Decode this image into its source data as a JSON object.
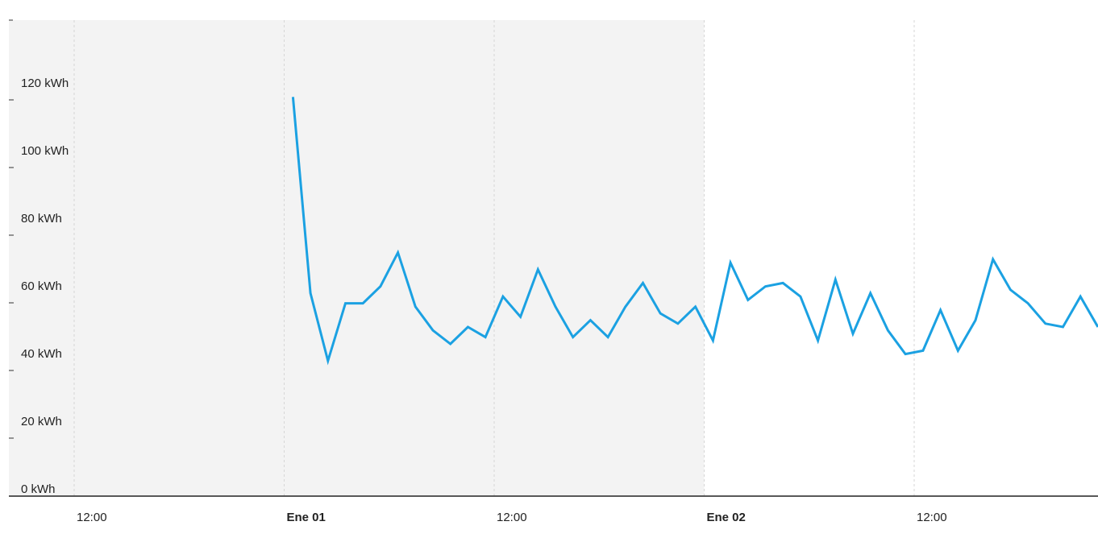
{
  "chart_data": {
    "type": "line",
    "title": "",
    "xlabel": "",
    "ylabel": "",
    "grid": "vertical",
    "shaded_range": [
      "Dic 31 00:00",
      "Ene 02 00:00"
    ],
    "xlim_hours": [
      -36,
      60
    ],
    "ylim": [
      0,
      140
    ],
    "y_ticks": [
      {
        "value": 0,
        "label": "0 kWh"
      },
      {
        "value": 20,
        "label": "20 kWh"
      },
      {
        "value": 40,
        "label": "40 kWh"
      },
      {
        "value": 60,
        "label": "60 kWh"
      },
      {
        "value": 80,
        "label": "80 kWh"
      },
      {
        "value": 100,
        "label": "100 kWh"
      },
      {
        "value": 120,
        "label": "120 kWh"
      }
    ],
    "x_ticks": [
      {
        "hour": -12,
        "label": "12:00",
        "bold": false
      },
      {
        "hour": 0,
        "label": "Ene 01",
        "bold": true
      },
      {
        "hour": 12,
        "label": "12:00",
        "bold": false
      },
      {
        "hour": 24,
        "label": "Ene 02",
        "bold": true
      },
      {
        "hour": 36,
        "label": "12:00",
        "bold": false
      }
    ],
    "series": [
      {
        "color": "#1ba1e2",
        "points": [
          {
            "x": 0.5,
            "y": 118
          },
          {
            "x": 1.5,
            "y": 60
          },
          {
            "x": 2.5,
            "y": 40
          },
          {
            "x": 3.5,
            "y": 57
          },
          {
            "x": 4.5,
            "y": 57
          },
          {
            "x": 5.5,
            "y": 62
          },
          {
            "x": 6.5,
            "y": 72
          },
          {
            "x": 7.5,
            "y": 56
          },
          {
            "x": 8.5,
            "y": 49
          },
          {
            "x": 9.5,
            "y": 45
          },
          {
            "x": 10.5,
            "y": 50
          },
          {
            "x": 11.5,
            "y": 47
          },
          {
            "x": 12.5,
            "y": 59
          },
          {
            "x": 13.5,
            "y": 53
          },
          {
            "x": 14.5,
            "y": 67
          },
          {
            "x": 15.5,
            "y": 56
          },
          {
            "x": 16.5,
            "y": 47
          },
          {
            "x": 17.5,
            "y": 52
          },
          {
            "x": 18.5,
            "y": 47
          },
          {
            "x": 19.5,
            "y": 56
          },
          {
            "x": 20.5,
            "y": 63
          },
          {
            "x": 21.5,
            "y": 54
          },
          {
            "x": 22.5,
            "y": 51
          },
          {
            "x": 23.5,
            "y": 56
          },
          {
            "x": 24.5,
            "y": 46
          },
          {
            "x": 25.5,
            "y": 69
          },
          {
            "x": 26.5,
            "y": 58
          },
          {
            "x": 27.5,
            "y": 62
          },
          {
            "x": 28.5,
            "y": 63
          },
          {
            "x": 29.5,
            "y": 59
          },
          {
            "x": 30.5,
            "y": 46
          },
          {
            "x": 31.5,
            "y": 64
          },
          {
            "x": 32.5,
            "y": 48
          },
          {
            "x": 33.5,
            "y": 60
          },
          {
            "x": 34.5,
            "y": 49
          },
          {
            "x": 35.5,
            "y": 42
          },
          {
            "x": 36.5,
            "y": 43
          },
          {
            "x": 37.5,
            "y": 55
          },
          {
            "x": 38.5,
            "y": 43
          },
          {
            "x": 39.5,
            "y": 52
          },
          {
            "x": 40.5,
            "y": 70
          },
          {
            "x": 41.5,
            "y": 61
          },
          {
            "x": 42.5,
            "y": 57
          },
          {
            "x": 43.5,
            "y": 51
          },
          {
            "x": 44.5,
            "y": 50
          },
          {
            "x": 45.5,
            "y": 59
          },
          {
            "x": 46.5,
            "y": 50
          }
        ]
      }
    ]
  }
}
